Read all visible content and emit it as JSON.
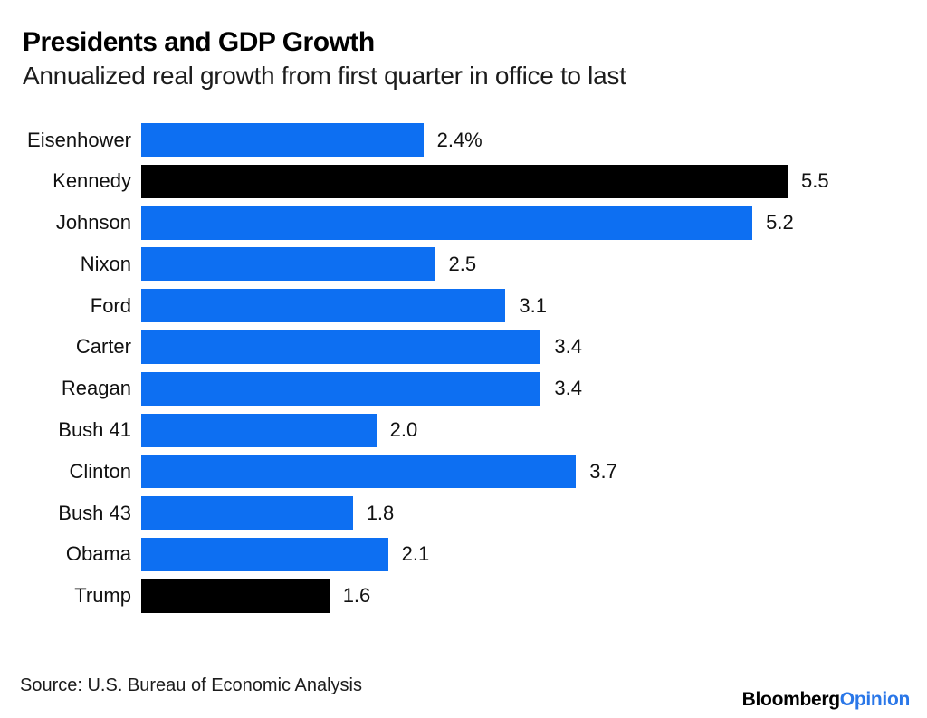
{
  "header": {
    "title": "Presidents and GDP Growth",
    "subtitle": "Annualized real growth from first quarter in office to last"
  },
  "chart_data": {
    "type": "bar",
    "orientation": "horizontal",
    "title": "Presidents and GDP Growth",
    "subtitle": "Annualized real growth from first quarter in office to last",
    "categories": [
      "Eisenhower",
      "Kennedy",
      "Johnson",
      "Nixon",
      "Ford",
      "Carter",
      "Reagan",
      "Bush 41",
      "Clinton",
      "Bush 43",
      "Obama",
      "Trump"
    ],
    "values": [
      2.4,
      5.5,
      5.2,
      2.5,
      3.1,
      3.4,
      3.4,
      2.0,
      3.7,
      1.8,
      2.1,
      1.6
    ],
    "value_labels": [
      "2.4%",
      "5.5",
      "5.2",
      "2.5",
      "3.1",
      "3.4",
      "3.4",
      "2.0",
      "3.7",
      "1.8",
      "2.1",
      "1.6"
    ],
    "colors": [
      "#0d6ff2",
      "#000000",
      "#0d6ff2",
      "#0d6ff2",
      "#0d6ff2",
      "#0d6ff2",
      "#0d6ff2",
      "#0d6ff2",
      "#0d6ff2",
      "#0d6ff2",
      "#0d6ff2",
      "#000000"
    ],
    "xlim": [
      0,
      5.5
    ],
    "grid": false,
    "legend": "none",
    "value_label_position": "right-of-bar",
    "source": "Source: U.S. Bureau of Economic Analysis"
  },
  "footer": {
    "source": "Source: U.S. Bureau of Economic Analysis",
    "brand_bloomberg": "Bloomberg",
    "brand_opinion": "Opinion"
  },
  "colors": {
    "bar_blue": "#0d6ff2",
    "bar_black": "#000000",
    "logo_opinion_blue": "#2a77e8",
    "text": "#111111"
  }
}
